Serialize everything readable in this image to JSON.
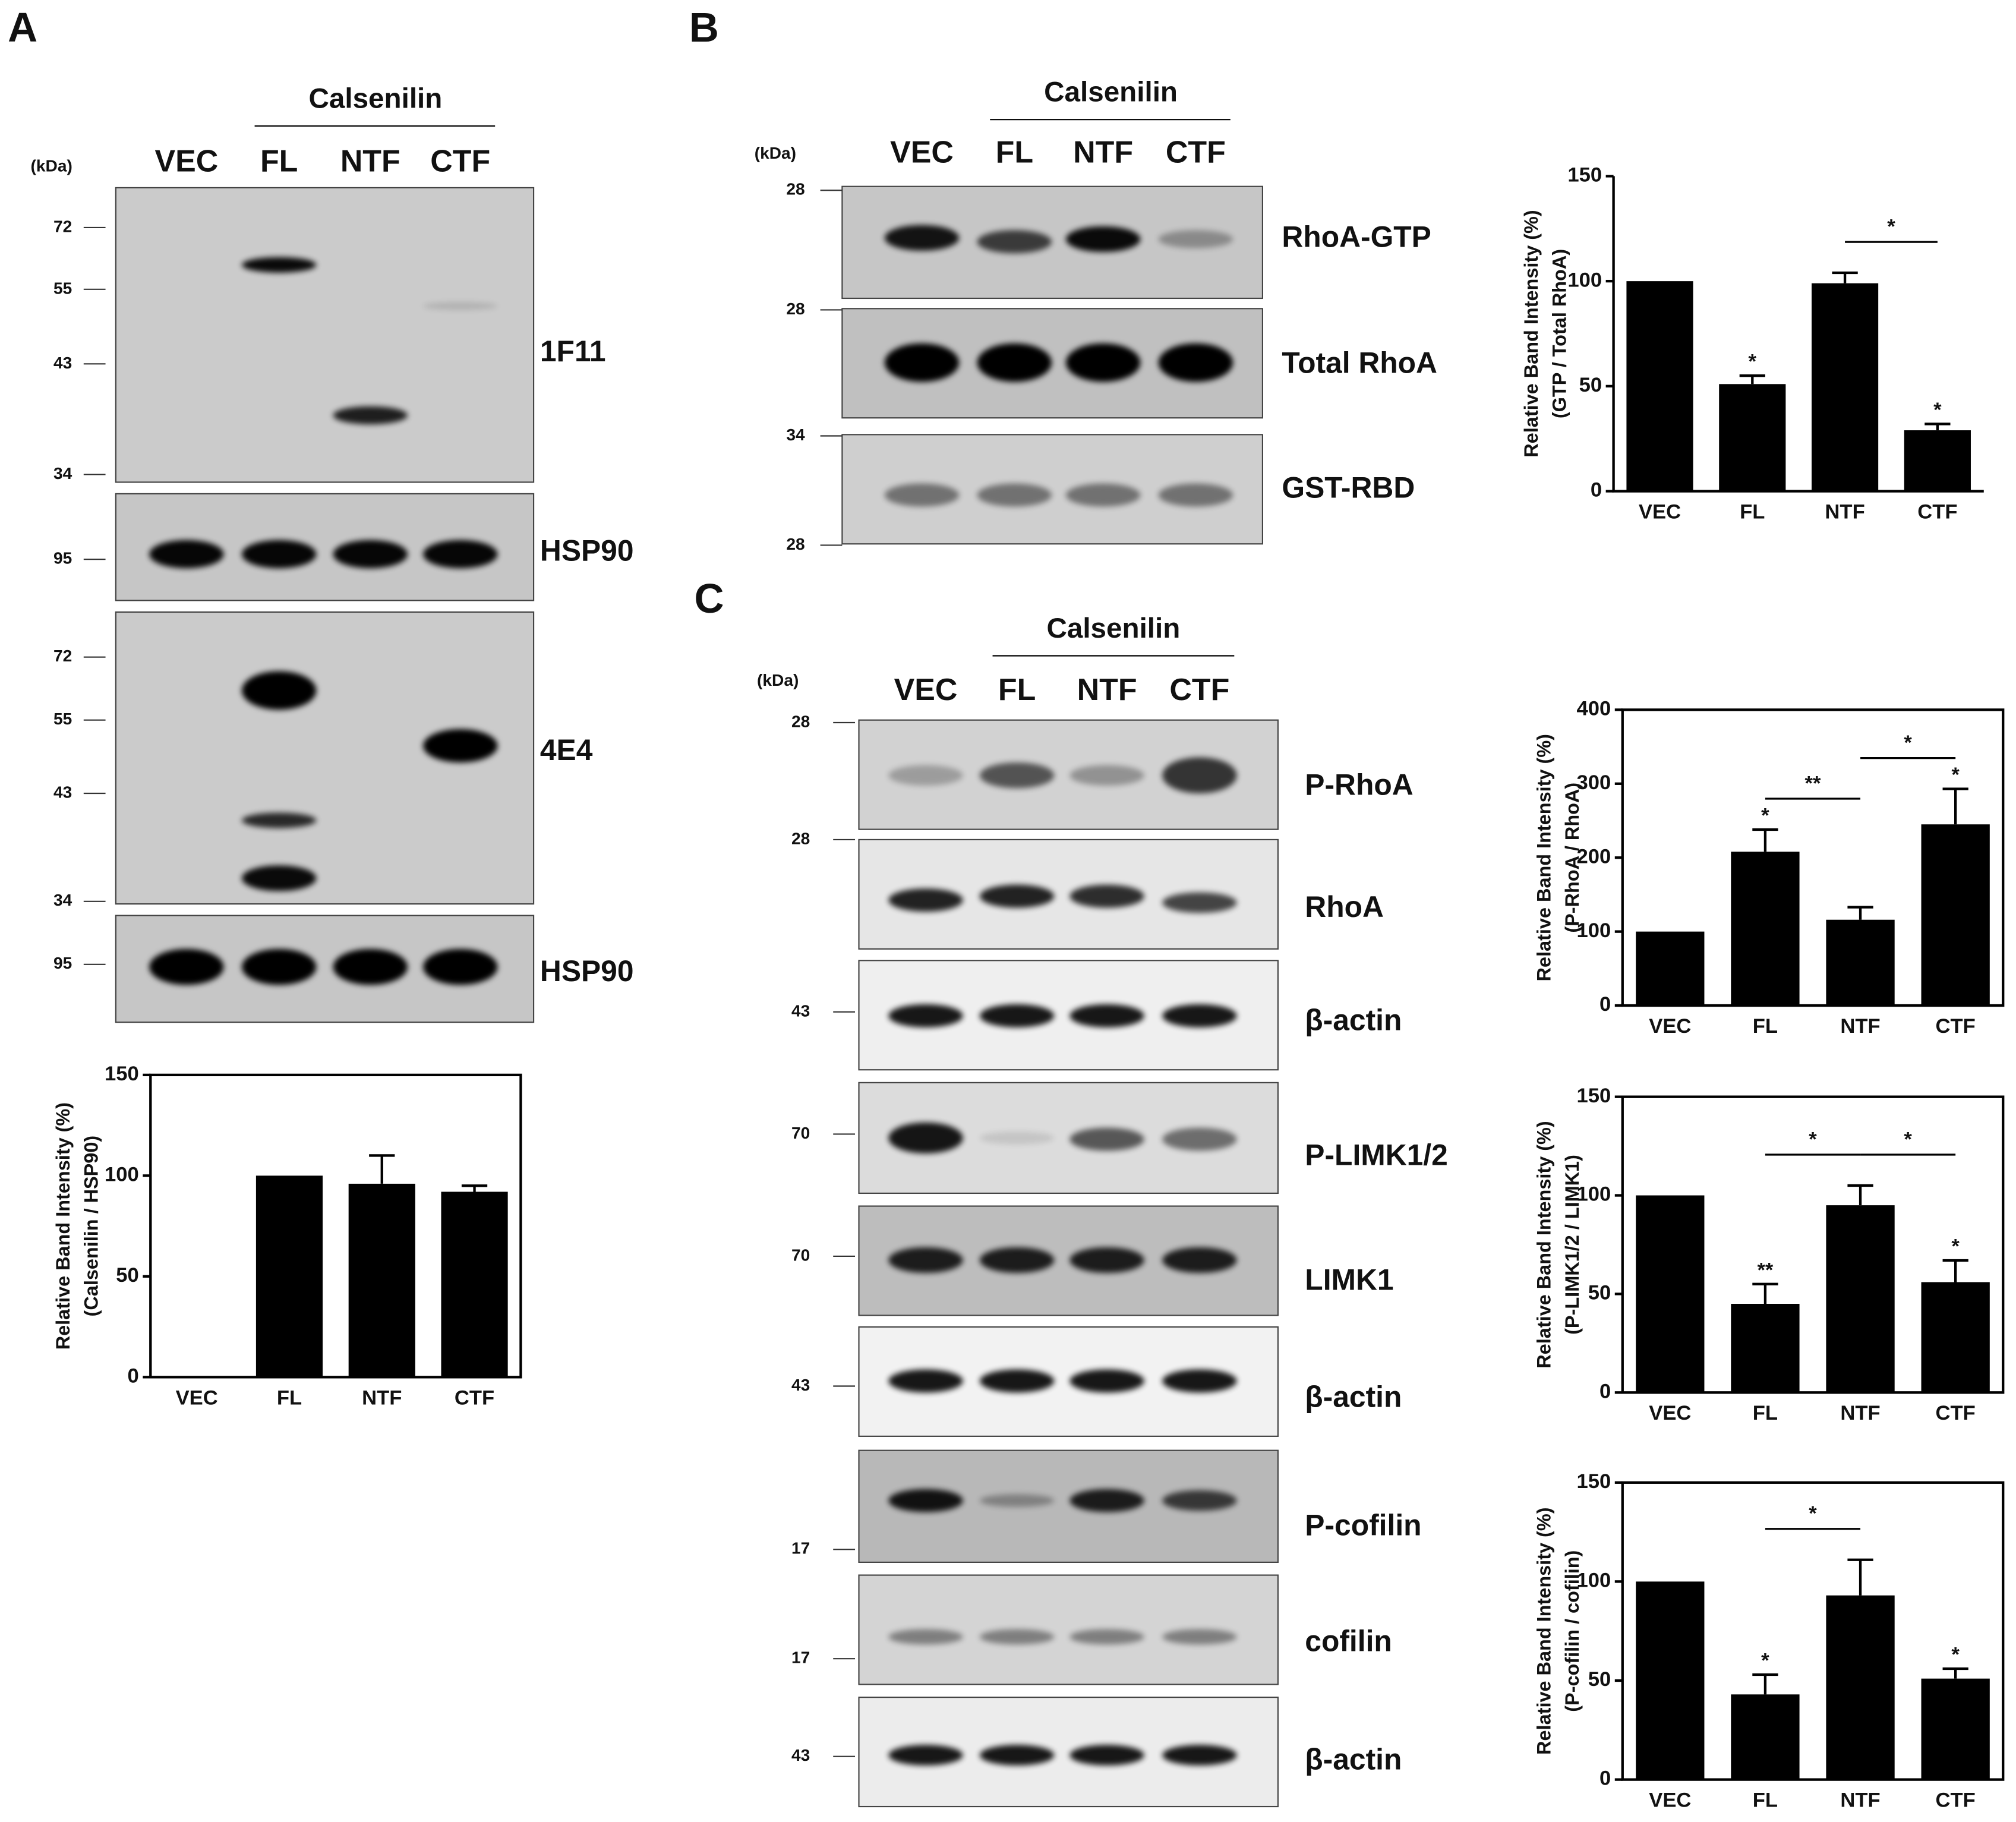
{
  "panel_labels": [
    "A",
    "B",
    "C"
  ],
  "blots": [
    {
      "group": "Calsenilin",
      "unit": "(kDa)",
      "lanes": [
        "VEC",
        "FL",
        "NTF",
        "CTF"
      ],
      "strips": [
        {
          "label": "1F11",
          "markers": [
            72,
            55,
            43,
            34
          ]
        },
        {
          "label": "HSP90",
          "markers": [
            95
          ]
        },
        {
          "label": "4E4",
          "markers": [
            72,
            55,
            43,
            34
          ]
        },
        {
          "label": "HSP90",
          "markers": [
            95
          ]
        }
      ]
    },
    {
      "group": "Calsenilin",
      "unit": "(kDa)",
      "lanes": [
        "VEC",
        "FL",
        "NTF",
        "CTF"
      ],
      "strips": [
        {
          "label": "RhoA-GTP",
          "markers": [
            28
          ]
        },
        {
          "label": "Total RhoA",
          "markers": [
            28
          ]
        },
        {
          "label": "GST-RBD",
          "markers": [
            34,
            28
          ]
        }
      ]
    },
    {
      "group": "Calsenilin",
      "unit": "(kDa)",
      "lanes": [
        "VEC",
        "FL",
        "NTF",
        "CTF"
      ],
      "strips": [
        {
          "label": "P-RhoA",
          "markers": [
            28
          ]
        },
        {
          "label": "RhoA",
          "markers": [
            28
          ]
        },
        {
          "label": "β-actin",
          "markers": [
            43
          ]
        },
        {
          "label": "P-LIMK1/2",
          "markers": [
            70
          ]
        },
        {
          "label": "LIMK1",
          "markers": [
            70
          ]
        },
        {
          "label": "β-actin",
          "markers": [
            43
          ]
        },
        {
          "label": "P-cofilin",
          "markers": [
            17
          ]
        },
        {
          "label": "cofilin",
          "markers": [
            17
          ]
        },
        {
          "label": "β-actin",
          "markers": [
            43
          ]
        }
      ]
    }
  ],
  "chart_data": [
    {
      "type": "bar",
      "ylabel": [
        "Relative Band Intensity (%)",
        "(Calsenilin / HSP90)"
      ],
      "categories": [
        "VEC",
        "FL",
        "NTF",
        "CTF"
      ],
      "values": [
        0,
        100,
        96,
        92
      ],
      "errors": [
        null,
        null,
        14,
        3
      ],
      "color": "#000000",
      "ylim": [
        0,
        150
      ],
      "yticks": [
        0,
        50,
        100,
        150
      ],
      "box": true
    },
    {
      "type": "bar",
      "ylabel": [
        "Relative Band Intensity (%)",
        "(GTP / Total RhoA)"
      ],
      "categories": [
        "VEC",
        "FL",
        "NTF",
        "CTF"
      ],
      "values": [
        100,
        51,
        99,
        29
      ],
      "errors": [
        null,
        4,
        5,
        3
      ],
      "color": "#000000",
      "ylim": [
        0,
        150
      ],
      "yticks": [
        0,
        50,
        100,
        150
      ],
      "box": false,
      "significance": [
        null,
        "*",
        null,
        "*"
      ],
      "comparisons": [
        {
          "pair": [
            "NTF",
            "CTF"
          ],
          "label": "*"
        }
      ]
    },
    {
      "type": "bar",
      "ylabel": [
        "Relative Band Intensity (%)",
        "(P-RhoA / RhoA)"
      ],
      "categories": [
        "VEC",
        "FL",
        "NTF",
        "CTF"
      ],
      "values": [
        100,
        208,
        116,
        245
      ],
      "errors": [
        null,
        30,
        17,
        48
      ],
      "color": "#000000",
      "ylim": [
        0,
        400
      ],
      "yticks": [
        0,
        100,
        200,
        300,
        400
      ],
      "box": true,
      "significance": [
        null,
        "*",
        null,
        "*"
      ],
      "comparisons": [
        {
          "pair": [
            "FL",
            "NTF"
          ],
          "label": "**"
        },
        {
          "pair": [
            "NTF",
            "CTF"
          ],
          "label": "*"
        }
      ]
    },
    {
      "type": "bar",
      "ylabel": [
        "Relative Band Intensity (%)",
        "(P-LIMK1/2 / LIMK1)"
      ],
      "categories": [
        "VEC",
        "FL",
        "NTF",
        "CTF"
      ],
      "values": [
        100,
        45,
        95,
        56
      ],
      "errors": [
        null,
        10,
        10,
        11
      ],
      "color": "#000000",
      "ylim": [
        0,
        150
      ],
      "yticks": [
        0,
        50,
        100,
        150
      ],
      "box": true,
      "significance": [
        null,
        "**",
        null,
        "*"
      ],
      "comparisons": [
        {
          "pair": [
            "FL",
            "NTF"
          ],
          "label": "*"
        },
        {
          "pair": [
            "NTF",
            "CTF"
          ],
          "label": "*"
        }
      ]
    },
    {
      "type": "bar",
      "ylabel": [
        "Relative Band Intensity (%)",
        "(P-cofilin / cofilin)"
      ],
      "categories": [
        "VEC",
        "FL",
        "NTF",
        "CTF"
      ],
      "values": [
        100,
        43,
        93,
        51
      ],
      "errors": [
        null,
        10,
        18,
        5
      ],
      "color": "#000000",
      "ylim": [
        0,
        150
      ],
      "yticks": [
        0,
        50,
        100,
        150
      ],
      "box": true,
      "significance": [
        null,
        "*",
        null,
        "*"
      ],
      "comparisons": [
        {
          "pair": [
            "FL",
            "NTF"
          ],
          "label": "*"
        }
      ]
    }
  ]
}
